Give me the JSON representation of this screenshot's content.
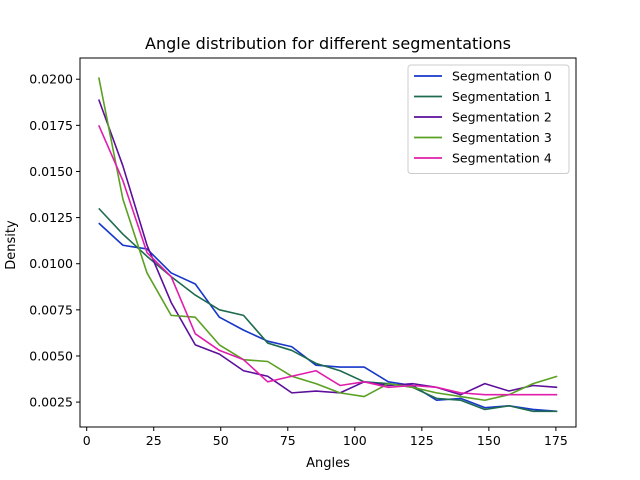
{
  "chart_data": {
    "type": "line",
    "title": "Angle distribution for different segmentations",
    "xlabel": "Angles",
    "ylabel": "Density",
    "xlim": [
      -2.5,
      182.5
    ],
    "ylim": [
      0.00115,
      0.02115
    ],
    "xticks": [
      0,
      25,
      50,
      75,
      100,
      125,
      150,
      175
    ],
    "xtick_labels": [
      "0",
      "25",
      "50",
      "75",
      "100",
      "125",
      "150",
      "175"
    ],
    "yticks": [
      0.0025,
      0.005,
      0.0075,
      0.01,
      0.0125,
      0.015,
      0.0175,
      0.02
    ],
    "ytick_labels": [
      "0.0025",
      "0.0050",
      "0.0075",
      "0.0100",
      "0.0125",
      "0.0150",
      "0.0175",
      "0.0200"
    ],
    "grid": false,
    "legend_position": "top-right",
    "x": [
      4.5,
      13.5,
      22.5,
      31.5,
      40.5,
      49.5,
      58.5,
      67.5,
      76.5,
      85.5,
      94.5,
      103.5,
      112.5,
      121.5,
      130.5,
      139.5,
      148.5,
      157.5,
      166.5,
      175.5
    ],
    "series": [
      {
        "name": "Segmentation 0",
        "color": "#1637c9",
        "values": [
          0.0122,
          0.011,
          0.0108,
          0.0095,
          0.0089,
          0.0071,
          0.0064,
          0.0058,
          0.0055,
          0.0045,
          0.0044,
          0.0044,
          0.0036,
          0.0034,
          0.0026,
          0.0027,
          0.0022,
          0.0023,
          0.0021,
          0.002
        ]
      },
      {
        "name": "Segmentation 1",
        "color": "#1e6b4f",
        "values": [
          0.013,
          0.0116,
          0.0104,
          0.0093,
          0.0083,
          0.0075,
          0.0072,
          0.0057,
          0.0053,
          0.0046,
          0.0042,
          0.0036,
          0.0035,
          0.0033,
          0.0027,
          0.0026,
          0.0021,
          0.0023,
          0.002,
          0.002
        ]
      },
      {
        "name": "Segmentation 2",
        "color": "#5c0f9c",
        "values": [
          0.0189,
          0.0153,
          0.011,
          0.0079,
          0.0056,
          0.0051,
          0.0042,
          0.0039,
          0.003,
          0.0031,
          0.003,
          0.0036,
          0.0034,
          0.0035,
          0.0033,
          0.0029,
          0.0035,
          0.0031,
          0.0034,
          0.0033
        ]
      },
      {
        "name": "Segmentation 3",
        "color": "#5aa022",
        "values": [
          0.0201,
          0.0135,
          0.0095,
          0.0072,
          0.0071,
          0.0056,
          0.0048,
          0.0047,
          0.0039,
          0.0035,
          0.003,
          0.0028,
          0.0035,
          0.0033,
          0.003,
          0.0028,
          0.0026,
          0.0029,
          0.0035,
          0.0039
        ]
      },
      {
        "name": "Segmentation 4",
        "color": "#e01eac",
        "values": [
          0.0175,
          0.0145,
          0.0106,
          0.0093,
          0.0062,
          0.0053,
          0.0048,
          0.0036,
          0.0039,
          0.0042,
          0.0034,
          0.0036,
          0.0033,
          0.0034,
          0.0033,
          0.003,
          0.0029,
          0.0029,
          0.0029,
          0.0029
        ]
      }
    ]
  }
}
